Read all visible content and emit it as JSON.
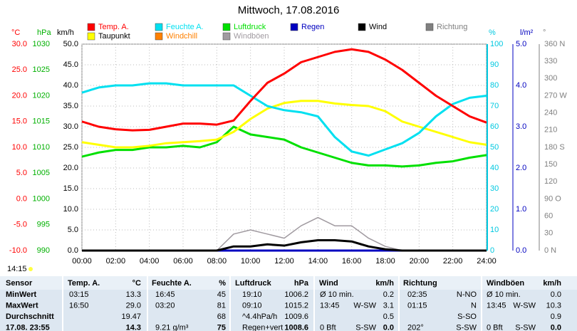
{
  "chart_data": {
    "type": "line",
    "title": "Mittwoch, 17.08.2016",
    "x": [
      0,
      1,
      2,
      3,
      4,
      5,
      6,
      7,
      8,
      9,
      10,
      11,
      12,
      13,
      14,
      15,
      16,
      17,
      18,
      19,
      20,
      21,
      22,
      23,
      24
    ],
    "xlim": [
      0,
      24
    ],
    "xticks": [
      {
        "value": 0,
        "label": "00:00"
      },
      {
        "value": 2,
        "label": "02:00"
      },
      {
        "value": 4,
        "label": "04:00"
      },
      {
        "value": 6,
        "label": "06:00"
      },
      {
        "value": 8,
        "label": "08:00"
      },
      {
        "value": 10,
        "label": "10:00"
      },
      {
        "value": 12,
        "label": "12:00"
      },
      {
        "value": 14,
        "label": "14:00"
      },
      {
        "value": 16,
        "label": "16:00"
      },
      {
        "value": 18,
        "label": "18:00"
      },
      {
        "value": 20,
        "label": "20:00"
      },
      {
        "value": 22,
        "label": "22:00"
      },
      {
        "value": 24,
        "label": "24:00"
      }
    ],
    "grid": true,
    "axes": [
      {
        "label": "°C",
        "color": "#ff0000",
        "lim": [
          -10,
          30
        ],
        "ticks": [
          {
            "value": -10,
            "label": "-10.0"
          },
          {
            "value": -5,
            "label": "-5.0"
          },
          {
            "value": 0,
            "label": "0.0"
          },
          {
            "value": 5,
            "label": "5.0"
          },
          {
            "value": 10,
            "label": "10.0"
          },
          {
            "value": 15,
            "label": "15.0"
          },
          {
            "value": 20,
            "label": "20.0"
          },
          {
            "value": 25,
            "label": "25.0"
          },
          {
            "value": 30,
            "label": "30.0"
          }
        ]
      },
      {
        "label": "hPa",
        "color": "#00b000",
        "lim": [
          990,
          1030
        ],
        "ticks": [
          990,
          995,
          1000,
          1005,
          1010,
          1015,
          1020,
          1025,
          1030
        ]
      },
      {
        "label": "km/h",
        "color": "#000000",
        "lim": [
          0,
          50
        ],
        "ticks": [
          {
            "value": 0,
            "label": "0.0"
          },
          {
            "value": 5,
            "label": "5.0"
          },
          {
            "value": 10,
            "label": "10.0"
          },
          {
            "value": 15,
            "label": "15.0"
          },
          {
            "value": 20,
            "label": "20.0"
          },
          {
            "value": 25,
            "label": "25.0"
          },
          {
            "value": 30,
            "label": "30.0"
          },
          {
            "value": 35,
            "label": "35.0"
          },
          {
            "value": 40,
            "label": "40.0"
          },
          {
            "value": 45,
            "label": "45.0"
          },
          {
            "value": 50,
            "label": "50.0"
          }
        ]
      },
      {
        "label": "%",
        "color": "#00c8e0",
        "lim": [
          0,
          100
        ],
        "ticks": [
          0,
          10,
          20,
          30,
          40,
          50,
          60,
          70,
          80,
          90,
          100
        ]
      },
      {
        "label": "l/m²",
        "color": "#0000c0",
        "lim": [
          0,
          5
        ],
        "ticks": [
          {
            "value": 0,
            "label": "0.0"
          },
          {
            "value": 1,
            "label": "1.0"
          },
          {
            "value": 2,
            "label": "2.0"
          },
          {
            "value": 3,
            "label": "3.0"
          },
          {
            "value": 4,
            "label": "4.0"
          },
          {
            "value": 5,
            "label": "5.0"
          }
        ]
      },
      {
        "label": "°",
        "color": "#808080",
        "lim": [
          0,
          360
        ],
        "ticks": [
          {
            "value": 0,
            "label": "0 N"
          },
          30,
          60,
          {
            "value": 90,
            "label": "90 O"
          },
          120,
          150,
          {
            "value": 180,
            "label": "180 S"
          },
          210,
          240,
          {
            "value": 270,
            "label": "270 W"
          },
          300,
          330,
          {
            "value": 360,
            "label": "360 N"
          }
        ]
      }
    ],
    "series": [
      {
        "name": "Temp. A.",
        "color": "#ff0000",
        "axis": 0,
        "values": [
          15,
          14,
          13.5,
          13.3,
          13.4,
          14,
          14.6,
          14.6,
          14.4,
          15.2,
          19,
          22.5,
          24.3,
          26.5,
          27.5,
          28.5,
          29,
          28.5,
          27,
          25,
          22.5,
          20,
          18,
          16,
          14.8
        ]
      },
      {
        "name": "Feuchte A.",
        "color": "#00e0f0",
        "axis": 3,
        "values": [
          76.5,
          79,
          80,
          80,
          81,
          81,
          80,
          80,
          80,
          80,
          75,
          70,
          68,
          67,
          65,
          55,
          48,
          46,
          49,
          52,
          57,
          65,
          71,
          74,
          75
        ]
      },
      {
        "name": "Luftdruck",
        "color": "#00e000",
        "axis": 1,
        "values": [
          1008.2,
          1009,
          1009.5,
          1009.5,
          1010,
          1010,
          1010.3,
          1010,
          1011,
          1014,
          1012.5,
          1012,
          1011.5,
          1010,
          1009,
          1008,
          1007,
          1006.5,
          1006.5,
          1006.3,
          1006.5,
          1007,
          1007.3,
          1008,
          1008.5
        ]
      },
      {
        "name": "Regen",
        "color": "#0000c0",
        "axis": 4,
        "values": [
          0,
          0,
          0,
          0,
          0,
          0,
          0,
          0,
          0,
          0,
          0,
          0,
          0,
          0,
          0,
          0,
          0,
          0,
          0,
          0,
          0,
          0,
          0,
          0,
          0
        ]
      },
      {
        "name": "Wind",
        "color": "#000000",
        "axis": 2,
        "values": [
          0,
          0,
          0,
          0,
          0,
          0,
          0,
          0,
          0,
          1,
          1,
          1.5,
          1.2,
          2,
          2.5,
          2.5,
          2.2,
          1,
          0.3,
          0,
          0,
          0,
          0,
          0,
          0
        ]
      },
      {
        "name": "Richtung",
        "color": "#808080",
        "axis": 5
      },
      {
        "name": "Taupunkt",
        "color": "#ffff00",
        "axis": 0,
        "values": [
          11,
          10.5,
          10,
          10,
          10.3,
          10.8,
          11,
          11.2,
          11.5,
          13,
          15.5,
          17.5,
          18.6,
          19,
          19,
          18.5,
          18.2,
          18,
          17,
          15,
          14,
          13,
          12,
          11,
          10.5
        ]
      },
      {
        "name": "Windchill",
        "color": "#ff8000",
        "axis": 0
      },
      {
        "name": "Windböen",
        "color": "#a09aa0",
        "axis": 2,
        "values": [
          0,
          0,
          0,
          0,
          0,
          0,
          0,
          0,
          0,
          4,
          5,
          4,
          3,
          6,
          8,
          6,
          6,
          3,
          1,
          0,
          0,
          0,
          0,
          0,
          0
        ]
      }
    ],
    "annotations": [
      "14:15"
    ]
  },
  "table": {
    "header": [
      "Sensor",
      "Temp. A.",
      "°C",
      "Feuchte A.",
      "%",
      "Luftdruck",
      "hPa",
      "Wind",
      "km/h",
      "Richtung",
      "Windböen",
      "km/h"
    ],
    "rows": [
      [
        "MinWert",
        "03:15",
        "13.3",
        "16:45",
        "45",
        "19:10",
        "1006.2",
        "Ø 10 min.",
        null,
        "0.2",
        "02:35",
        "N-NO",
        "Ø 10 min.",
        null,
        "0.0"
      ],
      [
        "MaxWert",
        "16:50",
        "29.0",
        "03:20",
        "81",
        "09:10",
        "1015.2",
        "13:45",
        "W-SW",
        "3.1",
        "01:15",
        "N",
        "13:45",
        "W-SW",
        "10.3"
      ],
      [
        "Durchschnitt",
        null,
        "19.47",
        null,
        "68",
        "^4.4hPa/h",
        "1009.6",
        null,
        null,
        "0.5",
        null,
        "S-SO",
        null,
        null,
        "0.9"
      ],
      [
        "17.08. 23:55",
        null,
        "14.3",
        "9.21 g/m³",
        "75",
        "Regen+vert",
        "1008.6",
        "0 Bft",
        "S-SW",
        "0.0",
        "202°",
        "S-SW",
        "0 Bft",
        "S-SW",
        "0.0"
      ]
    ]
  }
}
